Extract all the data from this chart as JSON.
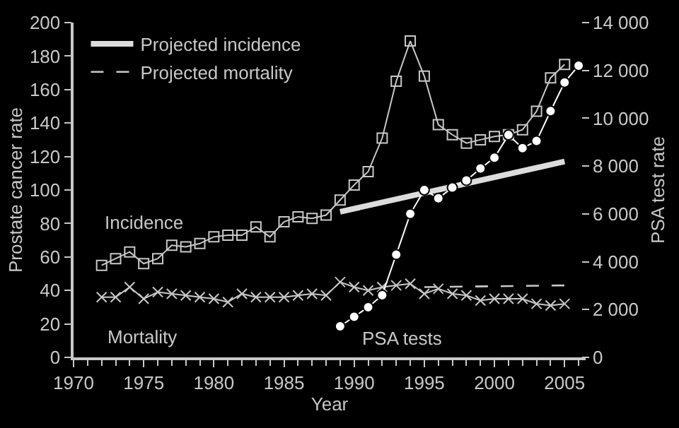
{
  "chart_data": {
    "type": "line",
    "xlabel": "Year",
    "ylabel": "Prostate cancer rate",
    "y2label": "PSA test rate",
    "xlim": [
      1970,
      2006.5
    ],
    "xticks": [
      1970,
      1975,
      1980,
      1985,
      1990,
      1995,
      2000,
      2005
    ],
    "ylim": [
      0,
      200
    ],
    "yticks": [
      0,
      20,
      40,
      60,
      80,
      100,
      120,
      140,
      160,
      180,
      200
    ],
    "y2lim": [
      0,
      14000
    ],
    "y2ticks": [
      0,
      {
        "value": 2000,
        "label": "2 000"
      },
      {
        "value": 4000,
        "label": "4 000"
      },
      {
        "value": 6000,
        "label": "6 000"
      },
      {
        "value": 8000,
        "label": "8 000"
      },
      {
        "value": 10000,
        "label": "10 000"
      },
      {
        "value": 12000,
        "label": "12 000"
      },
      {
        "value": 14000,
        "label": "14 000"
      }
    ],
    "grid": false,
    "legend": "top left",
    "series": [
      {
        "name": "Incidence",
        "color": "#c8c8c8",
        "marker": "square",
        "x": [
          1972,
          1973,
          1974,
          1975,
          1976,
          1977,
          1978,
          1979,
          1980,
          1981,
          1982,
          1983,
          1984,
          1985,
          1986,
          1987,
          1988,
          1989,
          1990,
          1991,
          1992,
          1993,
          1994,
          1995,
          1996,
          1997,
          1998,
          1999,
          2000,
          2001,
          2002,
          2003,
          2004,
          2005
        ],
        "values": [
          55,
          59,
          63,
          56,
          59,
          67,
          66,
          68,
          72,
          73,
          73,
          78,
          72,
          81,
          84,
          83,
          85,
          94,
          103,
          111,
          131,
          165,
          189,
          168,
          139,
          133,
          128,
          130,
          132,
          133,
          136,
          147,
          167,
          175
        ]
      },
      {
        "name": "Mortality",
        "color": "#c8c8c8",
        "marker": "cross",
        "x": [
          1972,
          1973,
          1974,
          1975,
          1976,
          1977,
          1978,
          1979,
          1980,
          1981,
          1982,
          1983,
          1984,
          1985,
          1986,
          1987,
          1988,
          1989,
          1990,
          1991,
          1992,
          1993,
          1994,
          1995,
          1996,
          1997,
          1998,
          1999,
          2000,
          2001,
          2002,
          2003,
          2004,
          2005
        ],
        "values": [
          36,
          36,
          42,
          35,
          39,
          38,
          37,
          36,
          35,
          33,
          38,
          36,
          36,
          36,
          37,
          38,
          37,
          45,
          42,
          40,
          42,
          43,
          44,
          38,
          41,
          38,
          37,
          34,
          35,
          35,
          35,
          32,
          31,
          32
        ]
      },
      {
        "name": "PSA tests",
        "color": "#ffffff",
        "marker": "circle",
        "axis": "y2",
        "x": [
          1989,
          1990,
          1991,
          1992,
          1993,
          1994,
          1995,
          1996,
          1997,
          1998,
          1999,
          2000,
          2001,
          2002,
          2003,
          2004,
          2005,
          2006
        ],
        "values": [
          1300,
          1700,
          2100,
          2600,
          4300,
          6000,
          7000,
          6650,
          7100,
          7400,
          7900,
          8350,
          9300,
          8750,
          9050,
          10300,
          11500,
          12200
        ]
      },
      {
        "name": "Projected incidence",
        "color": "#dcdcdc",
        "line_style": "solid",
        "x": [
          1989,
          2005
        ],
        "values": [
          87,
          117
        ]
      },
      {
        "name": "Projected mortality",
        "color": "#c8c8c8",
        "line_style": "dashed",
        "x": [
          1995,
          2005
        ],
        "values": [
          42,
          43
        ]
      }
    ]
  }
}
